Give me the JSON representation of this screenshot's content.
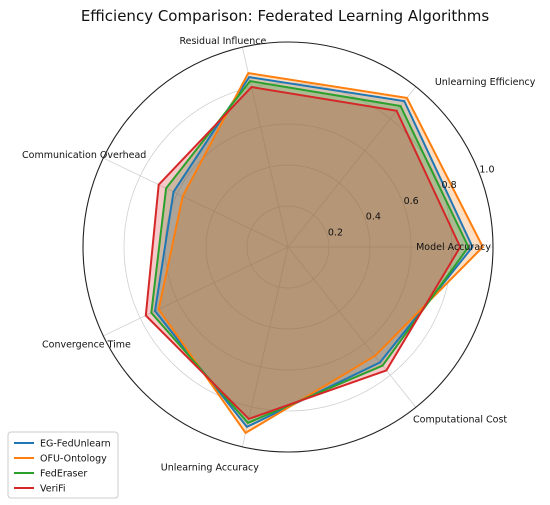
{
  "chart_data": {
    "type": "radar",
    "title": "Efficiency Comparison: Federated Learning Algorithms",
    "axes": [
      "Model Accuracy",
      "Unlearning Efficiency",
      "Residual Influence",
      "Communication Overhead",
      "Convergence Time",
      "Unlearning Accuracy",
      "Computational Cost"
    ],
    "rlim": [
      0,
      1.0
    ],
    "rticks": [
      "0.2",
      "0.4",
      "0.6",
      "0.8",
      "1.0"
    ],
    "grid": true,
    "legend_position": "lower-left",
    "series": [
      {
        "name": "EG-FedUnlearn",
        "color": "#1f77b4",
        "values": [
          0.9,
          0.91,
          0.85,
          0.62,
          0.72,
          0.9,
          0.72
        ]
      },
      {
        "name": "OFU-Ontology",
        "color": "#ff7f0e",
        "values": [
          0.95,
          0.93,
          0.87,
          0.57,
          0.7,
          0.93,
          0.68
        ]
      },
      {
        "name": "FedEraser",
        "color": "#2ca02c",
        "values": [
          0.88,
          0.88,
          0.83,
          0.66,
          0.74,
          0.88,
          0.74
        ]
      },
      {
        "name": "VeriFi",
        "color": "#d62728",
        "values": [
          0.84,
          0.85,
          0.8,
          0.7,
          0.77,
          0.86,
          0.77
        ]
      }
    ]
  }
}
